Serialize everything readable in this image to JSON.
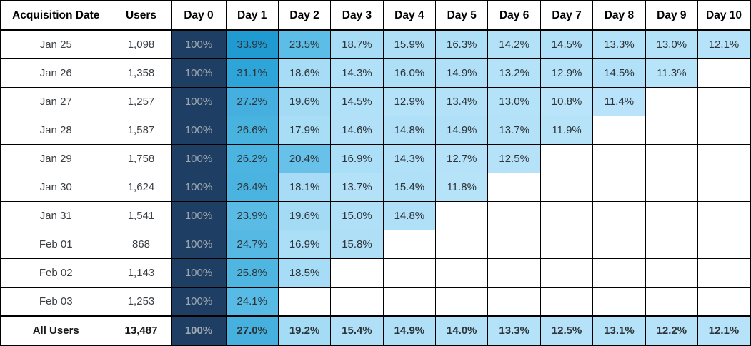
{
  "chart_data": {
    "type": "heatmap",
    "columns": [
      "Acquisition Date",
      "Users",
      "Day 0",
      "Day 1",
      "Day 2",
      "Day 3",
      "Day 4",
      "Day 5",
      "Day 6",
      "Day 7",
      "Day 8",
      "Day 9",
      "Day 10"
    ],
    "rows": [
      {
        "label": "Jan 25",
        "users": "1,098",
        "retention": [
          "100%",
          "33.9%",
          "23.5%",
          "18.7%",
          "15.9%",
          "16.3%",
          "14.2%",
          "14.5%",
          "13.3%",
          "13.0%",
          "12.1%"
        ]
      },
      {
        "label": "Jan 26",
        "users": "1,358",
        "retention": [
          "100%",
          "31.1%",
          "18.6%",
          "14.3%",
          "16.0%",
          "14.9%",
          "13.2%",
          "12.9%",
          "14.5%",
          "11.3%",
          ""
        ]
      },
      {
        "label": "Jan 27",
        "users": "1,257",
        "retention": [
          "100%",
          "27.2%",
          "19.6%",
          "14.5%",
          "12.9%",
          "13.4%",
          "13.0%",
          "10.8%",
          "11.4%",
          "",
          ""
        ]
      },
      {
        "label": "Jan 28",
        "users": "1,587",
        "retention": [
          "100%",
          "26.6%",
          "17.9%",
          "14.6%",
          "14.8%",
          "14.9%",
          "13.7%",
          "11.9%",
          "",
          "",
          ""
        ]
      },
      {
        "label": "Jan 29",
        "users": "1,758",
        "retention": [
          "100%",
          "26.2%",
          "20.4%",
          "16.9%",
          "14.3%",
          "12.7%",
          "12.5%",
          "",
          "",
          "",
          ""
        ]
      },
      {
        "label": "Jan 30",
        "users": "1,624",
        "retention": [
          "100%",
          "26.4%",
          "18.1%",
          "13.7%",
          "15.4%",
          "11.8%",
          "",
          "",
          "",
          "",
          ""
        ]
      },
      {
        "label": "Jan 31",
        "users": "1,541",
        "retention": [
          "100%",
          "23.9%",
          "19.6%",
          "15.0%",
          "14.8%",
          "",
          "",
          "",
          "",
          "",
          ""
        ]
      },
      {
        "label": "Feb 01",
        "users": "868",
        "retention": [
          "100%",
          "24.7%",
          "16.9%",
          "15.8%",
          "",
          "",
          "",
          "",
          "",
          "",
          ""
        ]
      },
      {
        "label": "Feb 02",
        "users": "1,143",
        "retention": [
          "100%",
          "25.8%",
          "18.5%",
          "",
          "",
          "",
          "",
          "",
          "",
          "",
          ""
        ]
      },
      {
        "label": "Feb 03",
        "users": "1,253",
        "retention": [
          "100%",
          "24.1%",
          "",
          "",
          "",
          "",
          "",
          "",
          "",
          "",
          ""
        ]
      }
    ],
    "total_row": {
      "label": "All Users",
      "users": "13,487",
      "retention": [
        "100%",
        "27.0%",
        "19.2%",
        "15.4%",
        "14.9%",
        "14.0%",
        "13.3%",
        "12.5%",
        "13.1%",
        "12.2%",
        "12.1%"
      ]
    },
    "color_scale": {
      "day0_bg": "#1F3E63",
      "day0_text": "#9FA7AF",
      "value_text": "#2E3338",
      "header_text": "#000000",
      "border": "#000000",
      "empty_bg": "#FFFFFF",
      "stops": [
        [
          10.8,
          "#B9E4FA"
        ],
        [
          14.0,
          "#B2E1F8"
        ],
        [
          17.0,
          "#ABDEF7"
        ],
        [
          19.9,
          "#A2DAF4"
        ],
        [
          20.0,
          "#68C2E9"
        ],
        [
          23.5,
          "#5CBDE6"
        ],
        [
          26.0,
          "#4DB5E1"
        ],
        [
          27.5,
          "#43AFDE"
        ],
        [
          31.1,
          "#2EA5D8"
        ],
        [
          34.0,
          "#209BD2"
        ],
        [
          100.0,
          "#1F3E63"
        ]
      ]
    }
  }
}
